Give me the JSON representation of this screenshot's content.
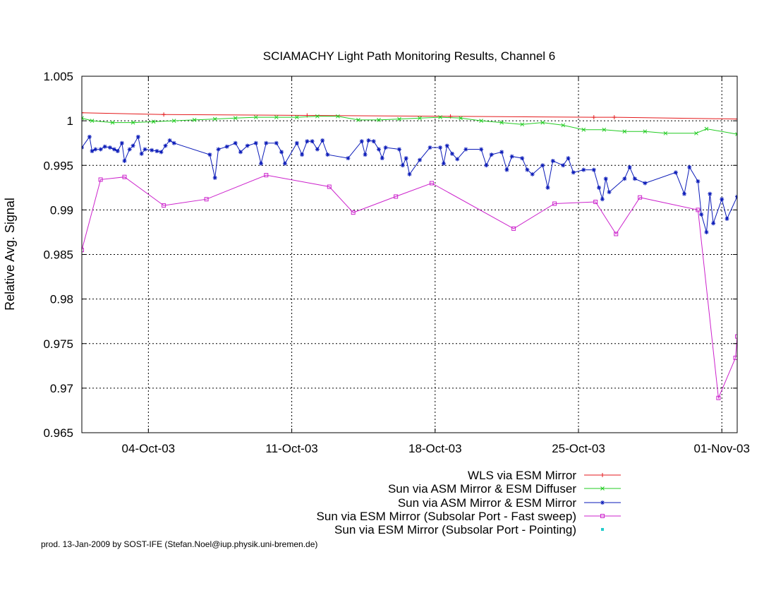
{
  "chart_data": {
    "type": "line",
    "title": "SCIAMACHY Light Path Monitoring Results, Channel 6",
    "ylabel": "Relative Avg. Signal",
    "xlabel": "",
    "xlim": [
      "2003-09-30T18:00",
      "2003-11-01T18:00"
    ],
    "ylim": [
      0.965,
      1.005
    ],
    "x_ticks": [
      {
        "date": "2003-10-04",
        "label": "04-Oct-03"
      },
      {
        "date": "2003-10-11",
        "label": "11-Oct-03"
      },
      {
        "date": "2003-10-18",
        "label": "18-Oct-03"
      },
      {
        "date": "2003-10-25",
        "label": "25-Oct-03"
      },
      {
        "date": "2003-11-01",
        "label": "01-Nov-03"
      }
    ],
    "y_ticks": [
      {
        "value": 0.965,
        "label": "0.965"
      },
      {
        "value": 0.97,
        "label": "0.97"
      },
      {
        "value": 0.975,
        "label": "0.975"
      },
      {
        "value": 0.98,
        "label": "0.98"
      },
      {
        "value": 0.985,
        "label": "0.985"
      },
      {
        "value": 0.99,
        "label": "0.99"
      },
      {
        "value": 0.995,
        "label": "0.995"
      },
      {
        "value": 1.0,
        "label": "1"
      },
      {
        "value": 1.005,
        "label": "1.005"
      }
    ],
    "grid": true,
    "legend_position": "below-right",
    "series": [
      {
        "name": "WLS via ESM Mirror",
        "color": "#e41a1c",
        "marker": "plus",
        "points": [
          [
            "2003-09-30T18:00",
            1.0009
          ],
          [
            "2003-10-04T18:00",
            1.0007
          ],
          [
            "2003-10-11T18:00",
            1.0006
          ],
          [
            "2003-10-18T18:00",
            1.0005
          ],
          [
            "2003-10-25T18:00",
            1.0004
          ],
          [
            "2003-10-26T18:00",
            1.0004
          ],
          [
            "2003-11-01T18:00",
            1.0002
          ]
        ]
      },
      {
        "name": "Sun via ASM Mirror & ESM Diffuser",
        "color": "#22cc22",
        "marker": "cross",
        "points": [
          [
            "2003-09-30T18:00",
            1.0003
          ],
          [
            "2003-10-01T06:00",
            1.0
          ],
          [
            "2003-10-02T06:00",
            0.9998
          ],
          [
            "2003-10-03T06:00",
            0.9998
          ],
          [
            "2003-10-04T06:00",
            0.9999
          ],
          [
            "2003-10-05T06:00",
            1.0
          ],
          [
            "2003-10-06T06:00",
            1.0001
          ],
          [
            "2003-10-07T06:00",
            1.0002
          ],
          [
            "2003-10-08T06:00",
            1.0003
          ],
          [
            "2003-10-09T06:00",
            1.0004
          ],
          [
            "2003-10-10T06:00",
            1.0004
          ],
          [
            "2003-10-11T06:00",
            1.0004
          ],
          [
            "2003-10-12T06:00",
            1.0005
          ],
          [
            "2003-10-13T06:00",
            1.0005
          ],
          [
            "2003-10-14T06:00",
            1.0001
          ],
          [
            "2003-10-15T06:00",
            1.0001
          ],
          [
            "2003-10-16T06:00",
            1.0002
          ],
          [
            "2003-10-17T06:00",
            1.0003
          ],
          [
            "2003-10-18T06:00",
            1.0004
          ],
          [
            "2003-10-19T06:00",
            1.0003
          ],
          [
            "2003-10-20T06:00",
            1.0
          ],
          [
            "2003-10-21T06:00",
            0.9998
          ],
          [
            "2003-10-22T06:00",
            0.9996
          ],
          [
            "2003-10-23T06:00",
            0.9998
          ],
          [
            "2003-10-24T06:00",
            0.9995
          ],
          [
            "2003-10-25T06:00",
            0.999
          ],
          [
            "2003-10-26T06:00",
            0.999
          ],
          [
            "2003-10-27T06:00",
            0.9988
          ],
          [
            "2003-10-28T06:00",
            0.9988
          ],
          [
            "2003-10-29T06:00",
            0.9986
          ],
          [
            "2003-10-30T18:00",
            0.9986
          ],
          [
            "2003-10-31T06:00",
            0.9991
          ],
          [
            "2003-11-01T18:00",
            0.9985
          ]
        ]
      },
      {
        "name": "Sun via ASM Mirror & ESM Mirror",
        "color": "#0a1ab8",
        "marker": "star",
        "points": [
          [
            "2003-09-30T18:00",
            0.997
          ],
          [
            "2003-10-01T03:00",
            0.9982
          ],
          [
            "2003-10-01T06:00",
            0.9966
          ],
          [
            "2003-10-01T10:00",
            0.9968
          ],
          [
            "2003-10-01T16:00",
            0.9968
          ],
          [
            "2003-10-01T21:00",
            0.9971
          ],
          [
            "2003-10-02T03:00",
            0.997
          ],
          [
            "2003-10-02T08:00",
            0.9968
          ],
          [
            "2003-10-02T12:00",
            0.9966
          ],
          [
            "2003-10-02T17:00",
            0.9975
          ],
          [
            "2003-10-02T20:00",
            0.9955
          ],
          [
            "2003-10-03T02:00",
            0.9968
          ],
          [
            "2003-10-03T06:00",
            0.9972
          ],
          [
            "2003-10-03T12:00",
            0.9982
          ],
          [
            "2003-10-03T16:00",
            0.9963
          ],
          [
            "2003-10-03T20:00",
            0.9968
          ],
          [
            "2003-10-04T04:00",
            0.9967
          ],
          [
            "2003-10-04T10:00",
            0.9966
          ],
          [
            "2003-10-04T15:00",
            0.9965
          ],
          [
            "2003-10-04T20:00",
            0.9972
          ],
          [
            "2003-10-05T01:00",
            0.9978
          ],
          [
            "2003-10-05T06:00",
            0.9975
          ],
          [
            "2003-10-07T00:00",
            0.9962
          ],
          [
            "2003-10-07T06:00",
            0.9936
          ],
          [
            "2003-10-07T10:00",
            0.9968
          ],
          [
            "2003-10-07T20:00",
            0.9971
          ],
          [
            "2003-10-08T06:00",
            0.9975
          ],
          [
            "2003-10-08T12:00",
            0.9965
          ],
          [
            "2003-10-08T20:00",
            0.9972
          ],
          [
            "2003-10-09T06:00",
            0.9975
          ],
          [
            "2003-10-09T12:00",
            0.9952
          ],
          [
            "2003-10-09T18:00",
            0.9975
          ],
          [
            "2003-10-10T06:00",
            0.9975
          ],
          [
            "2003-10-10T12:00",
            0.9965
          ],
          [
            "2003-10-10T16:00",
            0.9952
          ],
          [
            "2003-10-11T06:00",
            0.9975
          ],
          [
            "2003-10-11T12:00",
            0.9962
          ],
          [
            "2003-10-11T18:00",
            0.9977
          ],
          [
            "2003-10-12T00:00",
            0.9977
          ],
          [
            "2003-10-12T06:00",
            0.9968
          ],
          [
            "2003-10-12T12:00",
            0.9978
          ],
          [
            "2003-10-12T18:00",
            0.9962
          ],
          [
            "2003-10-13T18:00",
            0.9958
          ],
          [
            "2003-10-14T10:00",
            0.9977
          ],
          [
            "2003-10-14T14:00",
            0.9962
          ],
          [
            "2003-10-14T18:00",
            0.9978
          ],
          [
            "2003-10-15T00:00",
            0.9977
          ],
          [
            "2003-10-15T06:00",
            0.9968
          ],
          [
            "2003-10-15T10:00",
            0.9958
          ],
          [
            "2003-10-15T14:00",
            0.997
          ],
          [
            "2003-10-16T06:00",
            0.9968
          ],
          [
            "2003-10-16T10:00",
            0.995
          ],
          [
            "2003-10-16T14:00",
            0.9958
          ],
          [
            "2003-10-16T18:00",
            0.994
          ],
          [
            "2003-10-17T06:00",
            0.9956
          ],
          [
            "2003-10-17T18:00",
            0.997
          ],
          [
            "2003-10-18T06:00",
            0.997
          ],
          [
            "2003-10-18T10:00",
            0.9952
          ],
          [
            "2003-10-18T14:00",
            0.9972
          ],
          [
            "2003-10-18T20:00",
            0.9963
          ],
          [
            "2003-10-19T02:00",
            0.9957
          ],
          [
            "2003-10-19T12:00",
            0.9968
          ],
          [
            "2003-10-20T06:00",
            0.9968
          ],
          [
            "2003-10-20T12:00",
            0.995
          ],
          [
            "2003-10-20T18:00",
            0.9962
          ],
          [
            "2003-10-21T06:00",
            0.9965
          ],
          [
            "2003-10-21T12:00",
            0.9945
          ],
          [
            "2003-10-21T18:00",
            0.996
          ],
          [
            "2003-10-22T06:00",
            0.9958
          ],
          [
            "2003-10-22T12:00",
            0.9945
          ],
          [
            "2003-10-22T18:00",
            0.994
          ],
          [
            "2003-10-23T06:00",
            0.995
          ],
          [
            "2003-10-23T12:00",
            0.9925
          ],
          [
            "2003-10-23T18:00",
            0.9955
          ],
          [
            "2003-10-24T06:00",
            0.995
          ],
          [
            "2003-10-24T12:00",
            0.9958
          ],
          [
            "2003-10-24T18:00",
            0.9942
          ],
          [
            "2003-10-25T06:00",
            0.9945
          ],
          [
            "2003-10-25T18:00",
            0.9945
          ],
          [
            "2003-10-26T00:00",
            0.9925
          ],
          [
            "2003-10-26T04:00",
            0.9912
          ],
          [
            "2003-10-26T08:00",
            0.9935
          ],
          [
            "2003-10-26T12:00",
            0.992
          ],
          [
            "2003-10-27T06:00",
            0.9935
          ],
          [
            "2003-10-27T12:00",
            0.9948
          ],
          [
            "2003-10-27T18:00",
            0.9935
          ],
          [
            "2003-10-28T06:00",
            0.993
          ],
          [
            "2003-10-29T18:00",
            0.9942
          ],
          [
            "2003-10-30T04:00",
            0.9918
          ],
          [
            "2003-10-30T10:00",
            0.9948
          ],
          [
            "2003-10-30T20:00",
            0.9932
          ],
          [
            "2003-10-31T00:00",
            0.9895
          ],
          [
            "2003-10-31T06:00",
            0.9875
          ],
          [
            "2003-10-31T10:00",
            0.9918
          ],
          [
            "2003-10-31T14:00",
            0.9885
          ],
          [
            "2003-11-01T00:00",
            0.9912
          ],
          [
            "2003-11-01T06:00",
            0.989
          ],
          [
            "2003-11-01T18:00",
            0.9915
          ]
        ]
      },
      {
        "name": "Sun via ESM Mirror (Subsolar Port - Fast sweep)",
        "color": "#cc22cc",
        "marker": "square",
        "points": [
          [
            "2003-09-30T18:00",
            0.9855
          ],
          [
            "2003-10-01T16:00",
            0.9934
          ],
          [
            "2003-10-02T20:00",
            0.9937
          ],
          [
            "2003-10-04T18:00",
            0.9905
          ],
          [
            "2003-10-06T20:00",
            0.9912
          ],
          [
            "2003-10-09T18:00",
            0.9939
          ],
          [
            "2003-10-12T20:00",
            0.9926
          ],
          [
            "2003-10-14T00:00",
            0.9897
          ],
          [
            "2003-10-16T02:00",
            0.9915
          ],
          [
            "2003-10-17T20:00",
            0.993
          ],
          [
            "2003-10-21T20:00",
            0.9879
          ],
          [
            "2003-10-23T20:00",
            0.9907
          ],
          [
            "2003-10-25T20:00",
            0.9909
          ],
          [
            "2003-10-26T20:00",
            0.9873
          ],
          [
            "2003-10-28T00:00",
            0.9914
          ],
          [
            "2003-10-30T20:00",
            0.99
          ],
          [
            "2003-10-31T20:00",
            0.9689
          ],
          [
            "2003-11-01T16:00",
            0.9734
          ],
          [
            "2003-11-01T18:00",
            0.9758
          ]
        ]
      },
      {
        "name": "Sun via ESM Mirror (Subsolar Port - Pointing)",
        "color": "#22cccc",
        "marker": "dot",
        "points": []
      }
    ]
  },
  "footer": {
    "credit": "prod. 13-Jan-2009 by SOST-IFE (Stefan.Noel@iup.physik.uni-bremen.de)"
  }
}
